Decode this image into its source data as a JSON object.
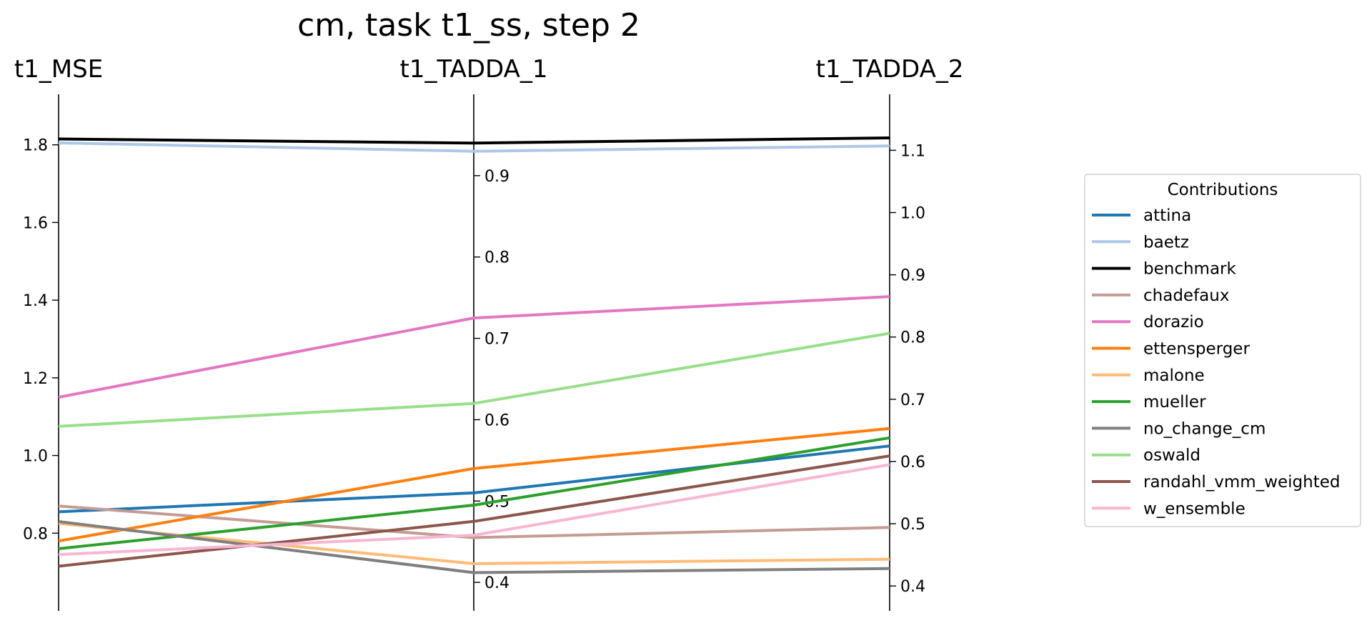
{
  "chart_data": {
    "type": "line",
    "title": "cm, task t1_ss, step 2",
    "axes": [
      {
        "name": "t1_MSE",
        "range": [
          0.6,
          1.93
        ],
        "ticks": [
          0.8,
          1.0,
          1.2,
          1.4,
          1.6,
          1.8
        ],
        "tick_labels": [
          "0.8",
          "1.0",
          "1.2",
          "1.4",
          "1.6",
          "1.8"
        ],
        "tick_side": "left"
      },
      {
        "name": "t1_TADDA_1",
        "range": [
          0.365,
          1.0
        ],
        "ticks": [
          0.4,
          0.5,
          0.6,
          0.7,
          0.8,
          0.9
        ],
        "tick_labels": [
          "0.4",
          "0.5",
          "0.6",
          "0.7",
          "0.8",
          "0.9"
        ],
        "tick_side": "right"
      },
      {
        "name": "t1_TADDA_2",
        "range": [
          0.36,
          1.19
        ],
        "ticks": [
          0.4,
          0.5,
          0.6,
          0.7,
          0.8,
          0.9,
          1.0,
          1.1
        ],
        "tick_labels": [
          "0.4",
          "0.5",
          "0.6",
          "0.7",
          "0.8",
          "0.9",
          "1.0",
          "1.1"
        ],
        "tick_side": "right"
      }
    ],
    "legend": {
      "title": "Contributions",
      "position": "right"
    },
    "series": [
      {
        "name": "attina",
        "color": "#1f77b4",
        "values": [
          0.855,
          0.51,
          0.625
        ]
      },
      {
        "name": "baetz",
        "color": "#aec7e8",
        "values": [
          1.805,
          0.93,
          1.107
        ]
      },
      {
        "name": "benchmark",
        "color": "#000000",
        "values": [
          1.815,
          0.94,
          1.12
        ]
      },
      {
        "name": "chadefaux",
        "color": "#c49c94",
        "values": [
          0.87,
          0.455,
          0.494
        ]
      },
      {
        "name": "dorazio",
        "color": "#e377c2",
        "values": [
          1.15,
          0.725,
          0.865
        ]
      },
      {
        "name": "ettensperger",
        "color": "#ff7f0e",
        "values": [
          0.78,
          0.54,
          0.653
        ]
      },
      {
        "name": "malone",
        "color": "#ffbb78",
        "values": [
          0.825,
          0.423,
          0.443
        ]
      },
      {
        "name": "mueller",
        "color": "#2ca02c",
        "values": [
          0.76,
          0.495,
          0.638
        ]
      },
      {
        "name": "no_change_cm",
        "color": "#7f7f7f",
        "values": [
          0.83,
          0.412,
          0.428
        ]
      },
      {
        "name": "oswald",
        "color": "#98df8a",
        "values": [
          1.075,
          0.62,
          0.806
        ]
      },
      {
        "name": "randahl_vmm_weighted",
        "color": "#8c564b",
        "values": [
          0.715,
          0.475,
          0.609
        ]
      },
      {
        "name": "w_ensemble",
        "color": "#f7b6d2",
        "values": [
          0.745,
          0.458,
          0.595
        ]
      }
    ]
  }
}
